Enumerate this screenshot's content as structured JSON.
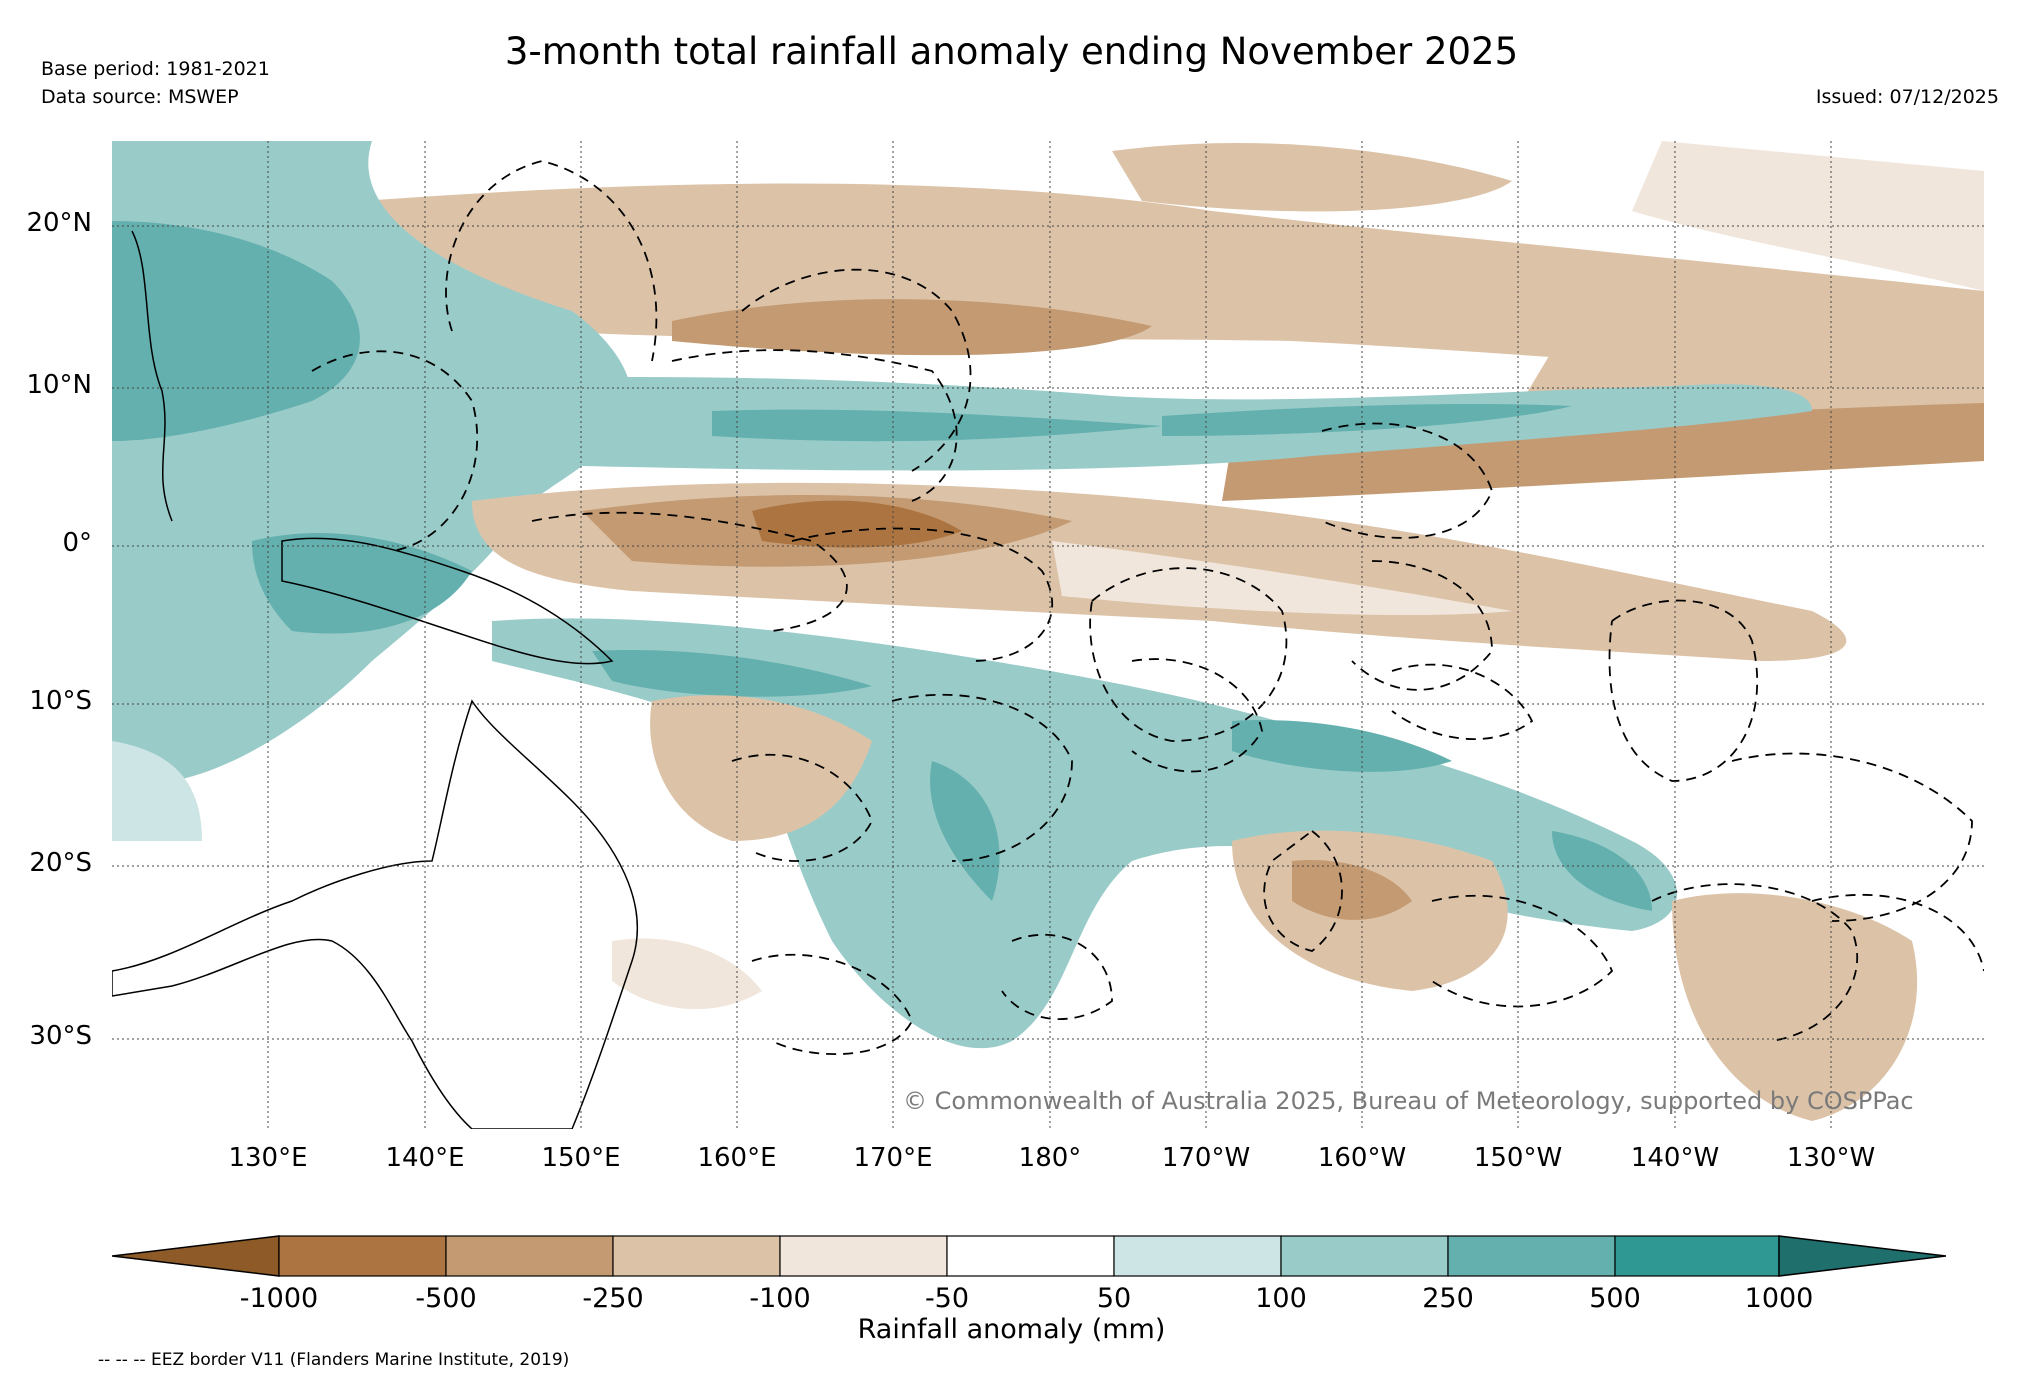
{
  "header": {
    "title": "3-month total rainfall anomaly ending November 2025",
    "base_period": "Base period: 1981-2021",
    "data_source": "Data source: MSWEP",
    "issued": "Issued: 07/12/2025"
  },
  "map": {
    "lat_labels": [
      "20°N",
      "10°N",
      "0°",
      "10°S",
      "20°S",
      "30°S"
    ],
    "lon_labels": [
      "130°E",
      "140°E",
      "150°E",
      "160°E",
      "170°E",
      "180°",
      "170°W",
      "160°W",
      "150°W",
      "140°W",
      "130°W"
    ],
    "copyright": "© Commonwealth of Australia 2025, Bureau of Meteorology, supported by COSPPac"
  },
  "legend": {
    "label": "Rainfall anomaly (mm)",
    "ticks": [
      "-1000",
      "-500",
      "-250",
      "-100",
      "-50",
      "50",
      "100",
      "250",
      "500",
      "1000"
    ],
    "colors": [
      "#8e5a28",
      "#ab7440",
      "#c49a72",
      "#dcc3a8",
      "#f1e6dc",
      "#ffffff",
      "#cde5e4",
      "#99cbc9",
      "#63b0ae",
      "#2f9893",
      "#1f6f6c"
    ]
  },
  "footer": {
    "eez_note": "-- -- -- EEZ border V11 (Flanders Marine Institute, 2019)"
  }
}
